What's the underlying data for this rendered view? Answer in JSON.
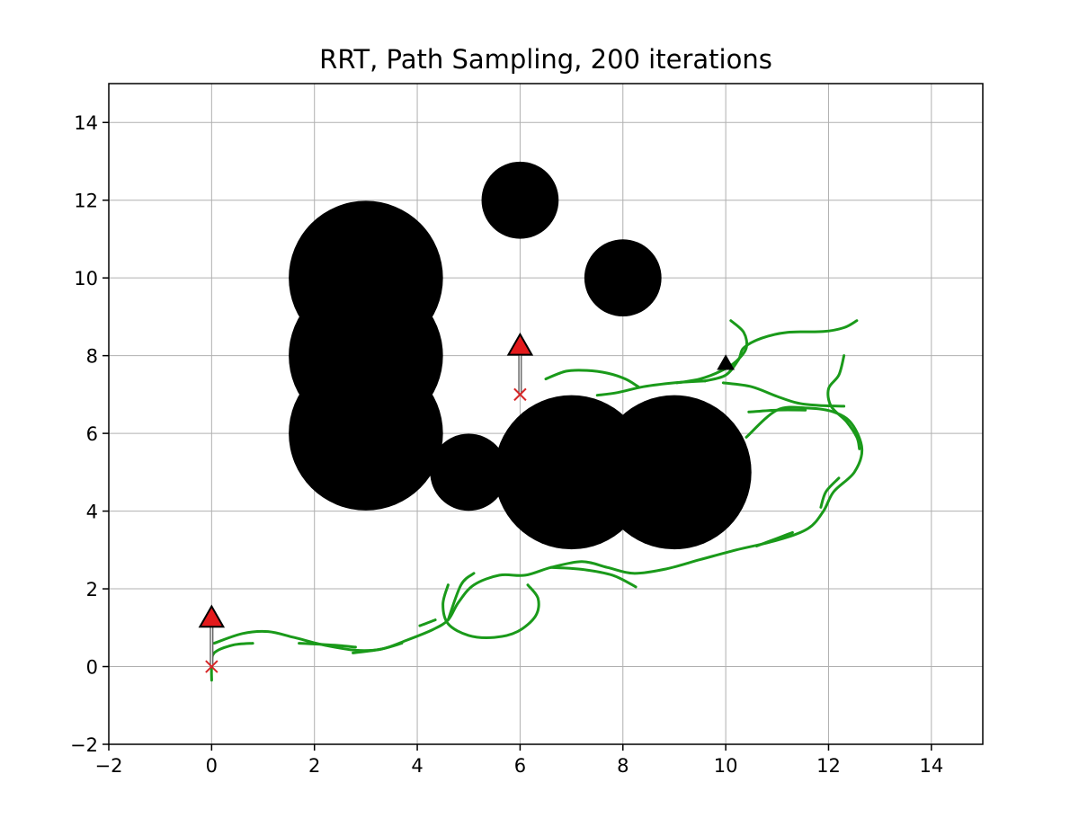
{
  "chart_data": {
    "type": "scatter",
    "title": "RRT, Path Sampling, 200 iterations",
    "xlabel": "",
    "ylabel": "",
    "xlim": [
      -2,
      15
    ],
    "ylim": [
      -2,
      15
    ],
    "xticks": [
      -2,
      0,
      2,
      4,
      6,
      8,
      10,
      12,
      14
    ],
    "yticks": [
      -2,
      0,
      2,
      4,
      6,
      8,
      10,
      12,
      14
    ],
    "grid": true,
    "colors": {
      "obstacle": "#000000",
      "tree": "#1a9a1a",
      "start_marker": "#e31a1c",
      "sample_marker": "#000000",
      "cross": "#d62728",
      "grid": "#b0b0b0"
    },
    "obstacles": [
      {
        "x": 3,
        "y": 10,
        "r": 1.5
      },
      {
        "x": 3,
        "y": 8,
        "r": 1.5
      },
      {
        "x": 3,
        "y": 6,
        "r": 1.5
      },
      {
        "x": 5,
        "y": 5,
        "r": 0.75
      },
      {
        "x": 7,
        "y": 5,
        "r": 1.5
      },
      {
        "x": 9,
        "y": 5,
        "r": 1.5
      },
      {
        "x": 6,
        "y": 12,
        "r": 0.75
      },
      {
        "x": 8,
        "y": 10,
        "r": 0.75
      }
    ],
    "path_segments": [
      [
        [
          0.05,
          0.6
        ],
        [
          0.6,
          0.85
        ],
        [
          1.1,
          0.9
        ],
        [
          1.6,
          0.75
        ],
        [
          2.2,
          0.55
        ],
        [
          2.8,
          0.42
        ],
        [
          3.3,
          0.45
        ],
        [
          3.8,
          0.68
        ],
        [
          4.3,
          0.95
        ],
        [
          4.6,
          1.2
        ],
        [
          4.8,
          1.65
        ],
        [
          5.1,
          2.1
        ],
        [
          5.6,
          2.35
        ],
        [
          6.1,
          2.35
        ],
        [
          6.6,
          2.55
        ],
        [
          7.2,
          2.7
        ],
        [
          7.7,
          2.55
        ],
        [
          8.2,
          2.4
        ],
        [
          8.8,
          2.5
        ],
        [
          9.5,
          2.75
        ],
        [
          10.2,
          3.0
        ],
        [
          11.0,
          3.25
        ],
        [
          11.6,
          3.55
        ],
        [
          11.9,
          4.0
        ],
        [
          12.1,
          4.5
        ],
        [
          12.5,
          5.0
        ],
        [
          12.65,
          5.6
        ],
        [
          12.45,
          6.25
        ],
        [
          12.1,
          6.55
        ],
        [
          11.6,
          6.65
        ],
        [
          11.0,
          6.6
        ],
        [
          10.4,
          5.9
        ]
      ],
      [
        [
          4.6,
          1.2
        ],
        [
          4.85,
          2.1
        ],
        [
          5.1,
          2.4
        ]
      ],
      [
        [
          4.6,
          2.1
        ],
        [
          4.5,
          1.6
        ],
        [
          4.6,
          1.1
        ],
        [
          5.0,
          0.8
        ],
        [
          5.5,
          0.75
        ],
        [
          5.95,
          0.9
        ],
        [
          6.3,
          1.3
        ],
        [
          6.35,
          1.75
        ],
        [
          6.15,
          2.1
        ]
      ],
      [
        [
          6.6,
          2.55
        ],
        [
          7.2,
          2.5
        ],
        [
          7.8,
          2.35
        ],
        [
          8.25,
          2.05
        ]
      ],
      [
        [
          0.0,
          -0.35
        ],
        [
          0.0,
          0.0
        ],
        [
          0.05,
          0.35
        ],
        [
          0.4,
          0.55
        ],
        [
          0.8,
          0.6
        ]
      ],
      [
        [
          1.7,
          0.6
        ],
        [
          2.4,
          0.55
        ],
        [
          2.8,
          0.5
        ]
      ],
      [
        [
          2.75,
          0.35
        ],
        [
          3.3,
          0.45
        ],
        [
          3.7,
          0.6
        ]
      ],
      [
        [
          4.05,
          1.05
        ],
        [
          4.35,
          1.2
        ]
      ],
      [
        [
          7.5,
          6.98
        ],
        [
          7.9,
          7.05
        ],
        [
          8.4,
          7.2
        ],
        [
          9.0,
          7.3
        ],
        [
          9.6,
          7.35
        ]
      ],
      [
        [
          6.5,
          7.4
        ],
        [
          6.9,
          7.6
        ],
        [
          7.3,
          7.62
        ],
        [
          7.7,
          7.55
        ],
        [
          8.05,
          7.4
        ],
        [
          8.3,
          7.2
        ]
      ],
      [
        [
          9.6,
          7.35
        ],
        [
          10.0,
          7.5
        ],
        [
          10.25,
          7.9
        ],
        [
          10.35,
          8.2
        ],
        [
          10.7,
          8.45
        ],
        [
          11.2,
          8.6
        ],
        [
          11.9,
          8.62
        ],
        [
          12.3,
          8.72
        ],
        [
          12.55,
          8.9
        ]
      ],
      [
        [
          10.1,
          8.9
        ],
        [
          10.35,
          8.6
        ],
        [
          10.4,
          8.2
        ],
        [
          10.2,
          7.85
        ],
        [
          9.9,
          7.6
        ],
        [
          9.5,
          7.4
        ],
        [
          9.05,
          7.3
        ]
      ],
      [
        [
          9.95,
          7.3
        ],
        [
          10.5,
          7.2
        ],
        [
          11.0,
          6.95
        ],
        [
          11.4,
          6.78
        ],
        [
          11.8,
          6.72
        ],
        [
          12.3,
          6.7
        ]
      ],
      [
        [
          12.3,
          8.0
        ],
        [
          12.2,
          7.5
        ],
        [
          12.0,
          7.15
        ],
        [
          12.05,
          6.7
        ],
        [
          12.35,
          6.3
        ],
        [
          12.55,
          5.9
        ],
        [
          12.6,
          5.6
        ]
      ],
      [
        [
          11.55,
          6.6
        ],
        [
          11.0,
          6.6
        ],
        [
          10.45,
          6.55
        ]
      ],
      [
        [
          12.2,
          4.85
        ],
        [
          11.95,
          4.5
        ],
        [
          11.85,
          4.1
        ]
      ],
      [
        [
          11.3,
          3.45
        ],
        [
          11.0,
          3.3
        ],
        [
          10.6,
          3.1
        ]
      ]
    ],
    "markers": [
      {
        "type": "triangle",
        "x": 0.0,
        "y": 1.25,
        "color": "#e31a1c"
      },
      {
        "type": "triangle",
        "x": 6.0,
        "y": 8.25,
        "color": "#e31a1c"
      },
      {
        "type": "triangle",
        "x": 10.0,
        "y": 7.8,
        "color": "#000000"
      },
      {
        "type": "cross",
        "x": 0.0,
        "y": 0.0,
        "color": "#d62728"
      },
      {
        "type": "cross",
        "x": 6.0,
        "y": 7.0,
        "color": "#d62728"
      }
    ],
    "arrows": [
      {
        "from": [
          0.0,
          0.0
        ],
        "to": [
          0.0,
          1.25
        ]
      },
      {
        "from": [
          6.0,
          7.0
        ],
        "to": [
          6.0,
          8.25
        ]
      }
    ]
  }
}
